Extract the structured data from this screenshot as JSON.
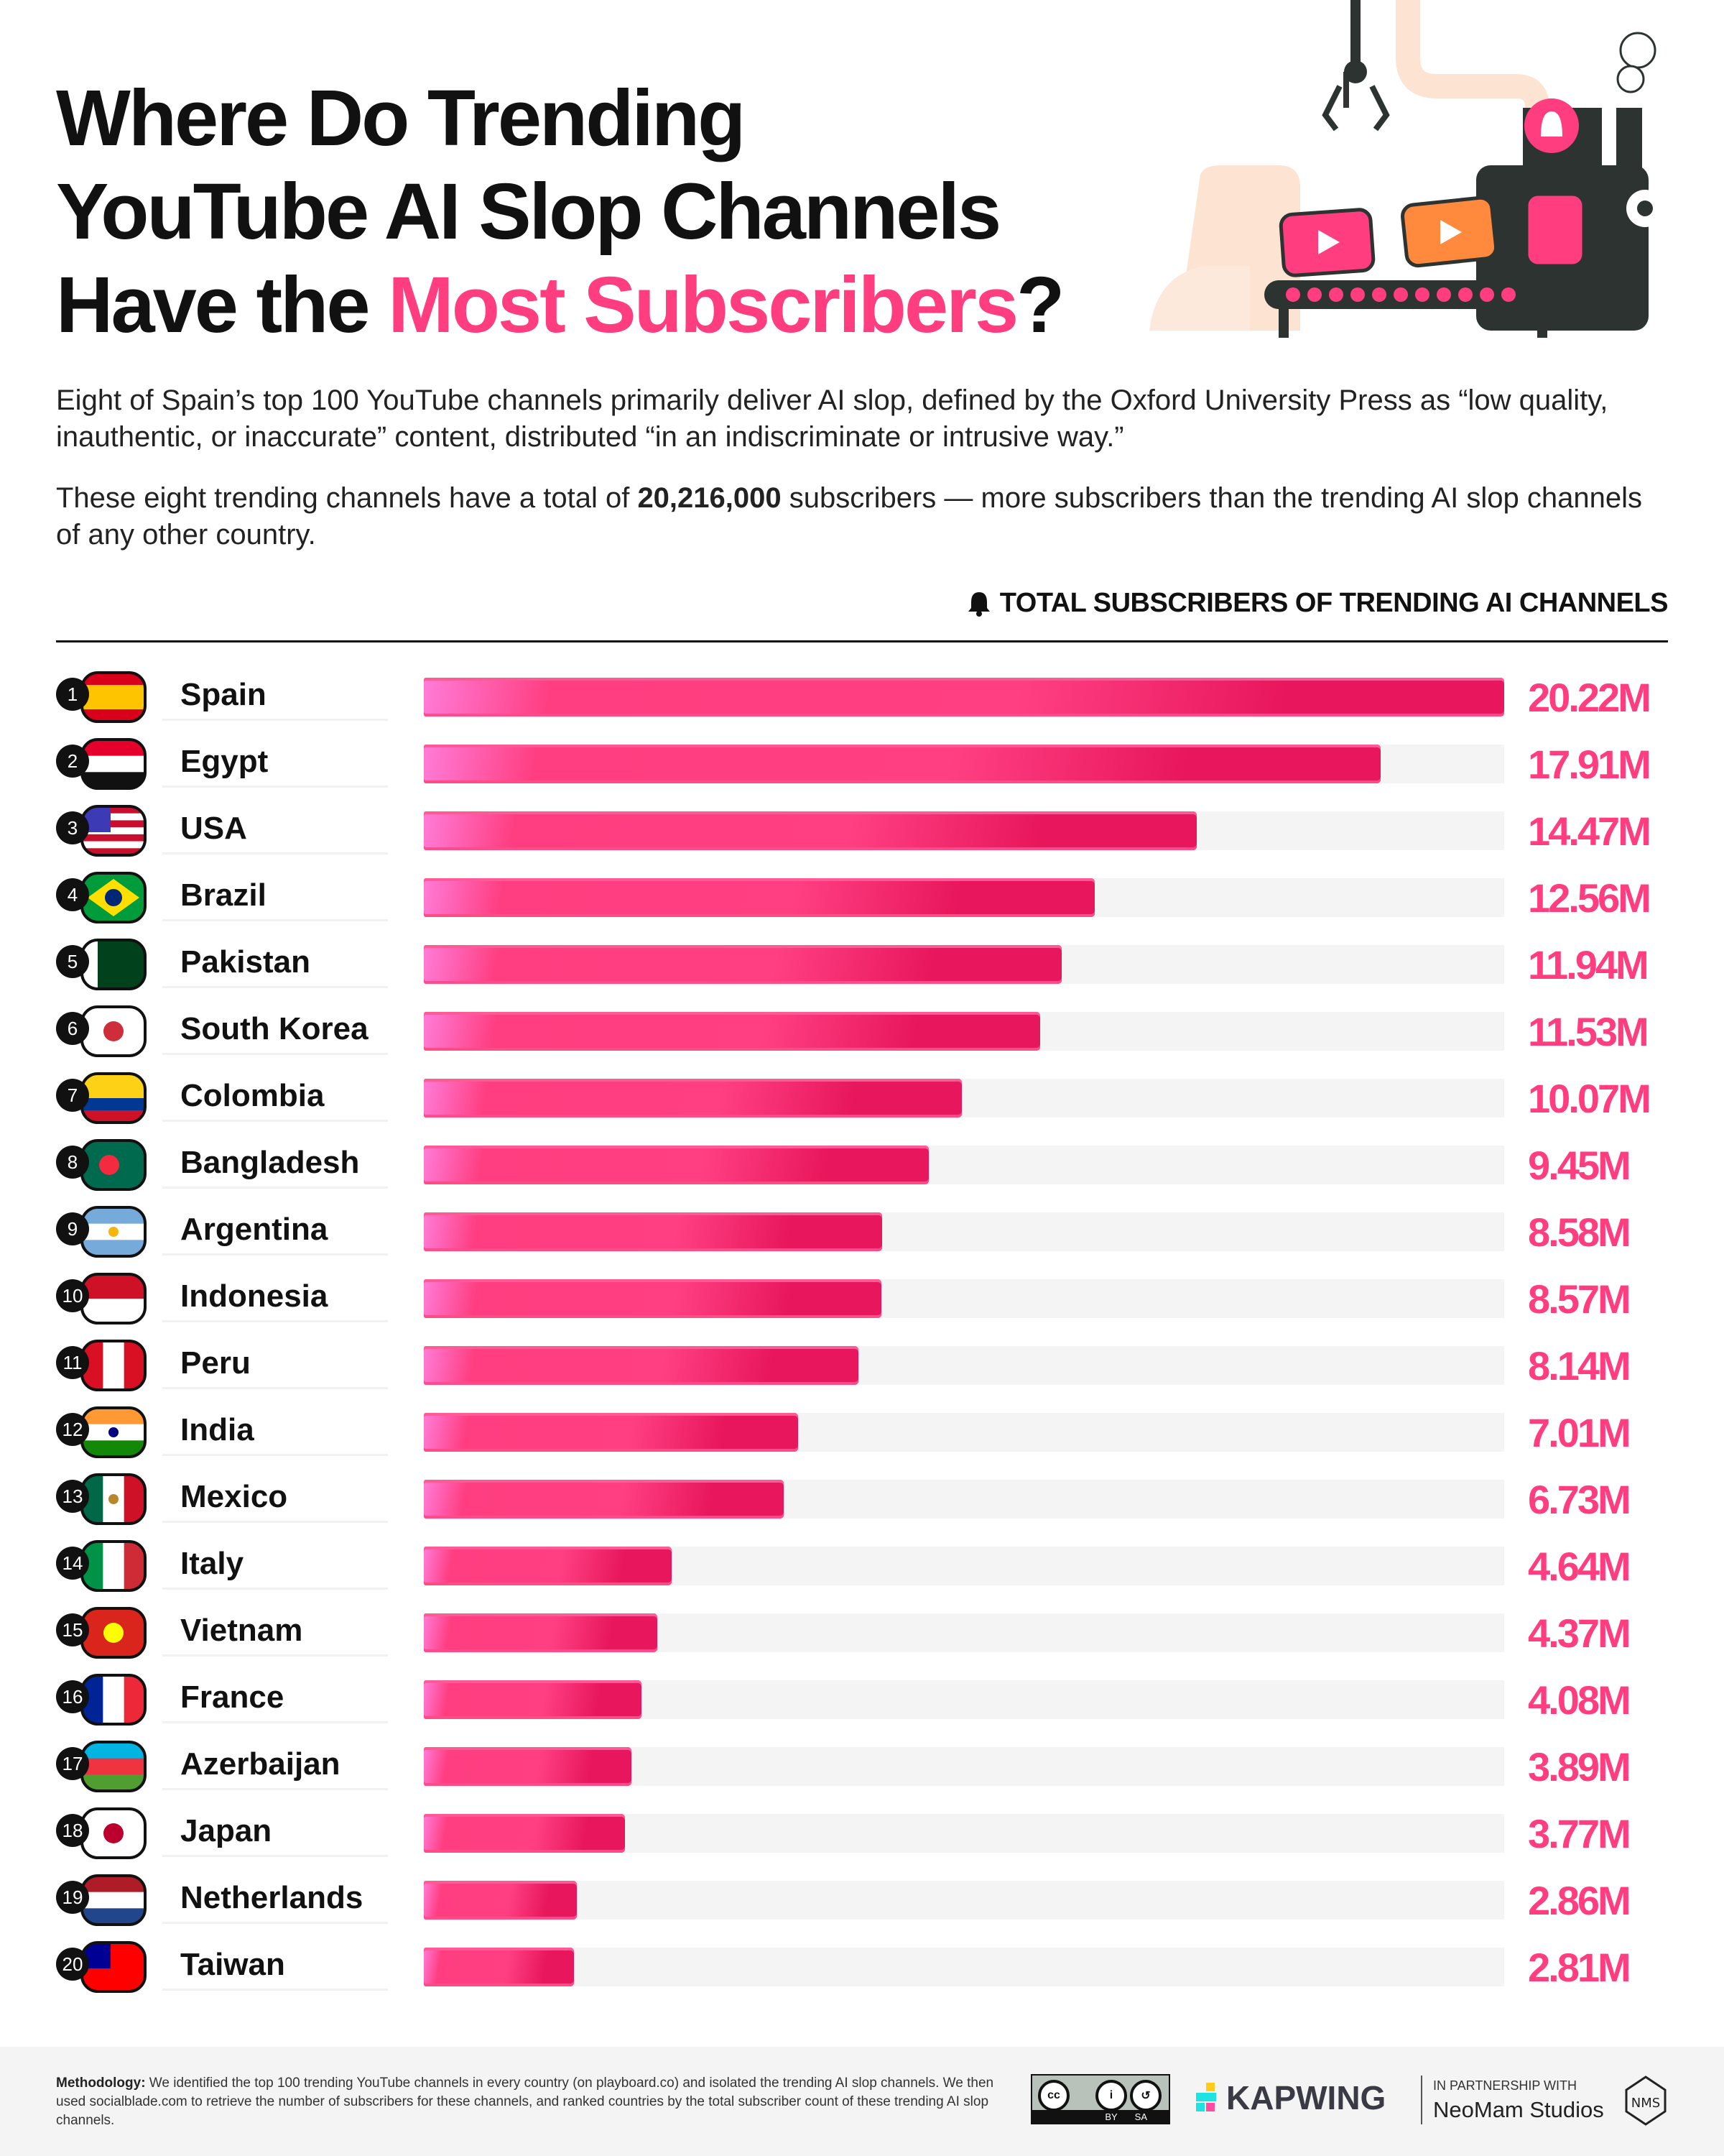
{
  "header": {
    "title_line1": "Where Do Trending",
    "title_line2": "YouTube AI Slop Channels",
    "title_line3_prefix": "Have the ",
    "title_line3_highlight": "Most Subscribers",
    "title_line3_suffix": "?",
    "intro": "Eight of Spain’s top 100 YouTube channels primarily deliver AI slop, defined by the Oxford University Press as “low quality, inauthentic, or inaccurate” content, distributed “in an indiscriminate or intrusive way.”",
    "summary_prefix": "These eight trending channels have a total of ",
    "summary_bold": "20,216,000",
    "summary_suffix": " subscribers — more subscribers than the trending AI slop channels of any other country."
  },
  "colors": {
    "accent": "#ff3d7f",
    "bar_dark": "#e8165c",
    "track": "#f4f4f4",
    "text": "#111111"
  },
  "chart_data": {
    "type": "bar",
    "orientation": "horizontal",
    "title": "TOTAL SUBSCRIBERS OF TRENDING AI CHANNELS",
    "title_icon": "bell-icon",
    "categories": [
      "Spain",
      "Egypt",
      "USA",
      "Brazil",
      "Pakistan",
      "South Korea",
      "Colombia",
      "Bangladesh",
      "Argentina",
      "Indonesia",
      "Peru",
      "India",
      "Mexico",
      "Italy",
      "Vietnam",
      "France",
      "Azerbaijan",
      "Japan",
      "Netherlands",
      "Taiwan"
    ],
    "values": [
      20.22,
      17.91,
      14.47,
      12.56,
      11.94,
      11.53,
      10.07,
      9.45,
      8.58,
      8.57,
      8.14,
      7.01,
      6.73,
      4.64,
      4.37,
      4.08,
      3.89,
      3.77,
      2.86,
      2.81
    ],
    "labels": [
      "20.22M",
      "17.91M",
      "14.47M",
      "12.56M",
      "11.94M",
      "11.53M",
      "10.07M",
      "9.45M",
      "8.58M",
      "8.57M",
      "8.14M",
      "7.01M",
      "6.73M",
      "4.64M",
      "4.37M",
      "4.08M",
      "3.89M",
      "3.77M",
      "2.86M",
      "2.81M"
    ],
    "ranks": [
      "1",
      "2",
      "3",
      "4",
      "5",
      "6",
      "7",
      "8",
      "9",
      "10",
      "11",
      "12",
      "13",
      "14",
      "15",
      "16",
      "17",
      "18",
      "19",
      "20"
    ],
    "unit": "millions of subscribers",
    "xlim": [
      0,
      20.22
    ],
    "grid": false,
    "legend": "none",
    "flags": [
      {
        "dir": "h",
        "colors": [
          "#d9001b",
          "#ffc400",
          "#ffc400",
          "#d9001b"
        ]
      },
      {
        "dir": "h",
        "colors": [
          "#e4002b",
          "#ffffff",
          "#111111"
        ]
      },
      {
        "dir": "h",
        "colors": [
          "#c8102e",
          "#ffffff",
          "#c8102e",
          "#ffffff",
          "#c8102e",
          "#ffffff",
          "#c8102e"
        ],
        "canton": "#3c3bb5"
      },
      {
        "dir": "h",
        "colors": [
          "#009b3a"
        ],
        "diamond": "#fedf00",
        "dot": "#002776"
      },
      {
        "dir": "v",
        "colors": [
          "#ffffff",
          "#01411c",
          "#01411c",
          "#01411c"
        ]
      },
      {
        "dir": "h",
        "colors": [
          "#ffffff"
        ],
        "dot": "#cd2e3a"
      },
      {
        "dir": "h",
        "colors": [
          "#fcd116",
          "#fcd116",
          "#003893",
          "#ce1126"
        ]
      },
      {
        "dir": "h",
        "colors": [
          "#006a4e"
        ],
        "dot": "#f42a41"
      },
      {
        "dir": "h",
        "colors": [
          "#75aadb",
          "#ffffff",
          "#75aadb"
        ],
        "dot": "#f6b40e"
      },
      {
        "dir": "h",
        "colors": [
          "#ce1126",
          "#ffffff"
        ]
      },
      {
        "dir": "v",
        "colors": [
          "#d91023",
          "#ffffff",
          "#d91023"
        ]
      },
      {
        "dir": "h",
        "colors": [
          "#ff9933",
          "#ffffff",
          "#138808"
        ],
        "dot": "#000080"
      },
      {
        "dir": "v",
        "colors": [
          "#006847",
          "#ffffff",
          "#ce1126"
        ],
        "dot": "#b8862b"
      },
      {
        "dir": "v",
        "colors": [
          "#009246",
          "#ffffff",
          "#ce2b37"
        ]
      },
      {
        "dir": "h",
        "colors": [
          "#da251d"
        ],
        "dot": "#ffff00"
      },
      {
        "dir": "v",
        "colors": [
          "#002395",
          "#ffffff",
          "#ed2939"
        ]
      },
      {
        "dir": "h",
        "colors": [
          "#00b5e2",
          "#ef3340",
          "#509e2f"
        ]
      },
      {
        "dir": "h",
        "colors": [
          "#ffffff"
        ],
        "dot": "#bc002d"
      },
      {
        "dir": "h",
        "colors": [
          "#ae1c28",
          "#ffffff",
          "#21468b"
        ]
      },
      {
        "dir": "h",
        "colors": [
          "#fe0000"
        ],
        "canton": "#000095"
      }
    ]
  },
  "footer": {
    "methodology_label": "Methodology:",
    "methodology_text": " We identified the top 100 trending YouTube channels in every country (on playboard.co) and isolated the trending AI slop channels. We then used socialblade.com to retrieve the number of subscribers for these channels, and ranked countries by the total subscriber count of these trending AI slop channels.",
    "license_cc": "cc",
    "license_by": "BY",
    "license_sa": "SA",
    "brand": "KAPWING",
    "partner_label": "IN PARTNERSHIP WITH",
    "partner_name": "NeoMam Studios",
    "partner_logo_text": "NMS"
  }
}
